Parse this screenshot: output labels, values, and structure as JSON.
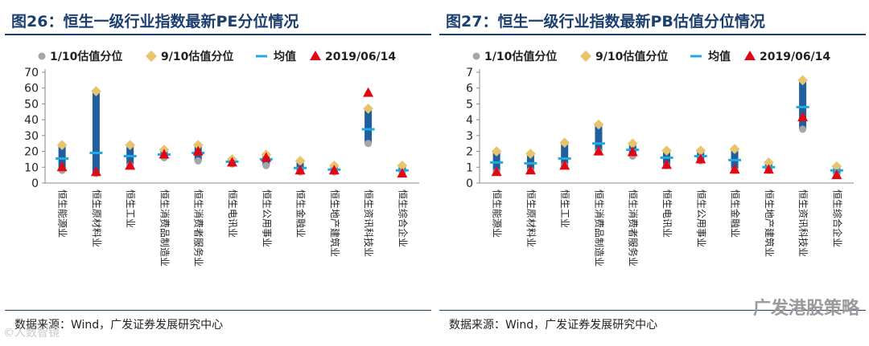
{
  "charts": [
    {
      "title": "图26：恒生一级行业指数最新PE分位情况",
      "source": "数据来源：Wind，广发证券发展研究中心",
      "chart_data": {
        "type": "range",
        "legend": [
          "1/10估值分位",
          "9/10估值分位",
          "均值",
          "2019/06/14"
        ],
        "legend_placement": "top",
        "categories": [
          "恒生能源业",
          "恒生原材料业",
          "恒生工业",
          "恒生消费品制造业",
          "恒生消费者服务业",
          "恒生电讯业",
          "恒生公用事业",
          "恒生金融业",
          "恒生地产建筑业",
          "恒生资讯科技业",
          "恒生综合企业"
        ],
        "yticks": [
          "0",
          "10",
          "20",
          "30",
          "40",
          "50",
          "60",
          "70"
        ],
        "ylim": [
          0,
          70
        ],
        "low": [
          8,
          6,
          11,
          16,
          14,
          12,
          11,
          7,
          7,
          25,
          7
        ],
        "high": [
          24,
          58,
          24,
          21,
          24,
          15,
          18,
          14,
          11,
          47,
          11
        ],
        "mean": [
          15.5,
          19,
          17,
          18,
          19,
          13.5,
          15,
          9.5,
          8.5,
          34,
          8
        ],
        "latest": [
          10,
          7,
          11,
          18,
          20,
          13,
          16,
          8,
          8,
          57,
          6
        ]
      }
    },
    {
      "title": "图27：恒生一级行业指数最新PB估值分位情况",
      "source": "数据来源：Wind，广发证券发展研究中心",
      "chart_data": {
        "type": "range",
        "legend": [
          "1/10估值分位",
          "9/10估值分位",
          "均值",
          "2019/06/14"
        ],
        "legend_placement": "top",
        "categories": [
          "恒生能源业",
          "恒生原材料业",
          "恒生工业",
          "恒生消费品制造业",
          "恒生消费者服务业",
          "恒生电讯业",
          "恒生公用事业",
          "恒生金融业",
          "恒生地产建筑业",
          "恒生资讯科技业",
          "恒生综合企业"
        ],
        "yticks": [
          "0",
          "1",
          "2",
          "3",
          "4",
          "5",
          "6",
          "7"
        ],
        "ylim": [
          0,
          7
        ],
        "low": [
          0.7,
          0.8,
          1.1,
          2.0,
          1.7,
          1.1,
          1.4,
          0.8,
          0.8,
          3.4,
          0.5
        ],
        "high": [
          2.0,
          1.85,
          2.55,
          3.7,
          2.5,
          2.05,
          2.05,
          2.15,
          1.3,
          6.5,
          1.05
        ],
        "mean": [
          1.3,
          1.25,
          1.55,
          2.5,
          2.1,
          1.6,
          1.7,
          1.45,
          1.0,
          4.8,
          0.8
        ],
        "latest": [
          0.7,
          0.8,
          1.1,
          2.0,
          1.95,
          1.15,
          1.5,
          0.85,
          0.85,
          4.15,
          0.5
        ]
      }
    }
  ],
  "watermark": "广发港股策略",
  "corner_mark": "©人数智镜",
  "colors": {
    "bar": "#1f5f9e",
    "low": "#a6a6a6",
    "high": "#e8c46c",
    "mean": "#21a9e1",
    "latest": "#e30613",
    "title": "#1d3f6e"
  }
}
